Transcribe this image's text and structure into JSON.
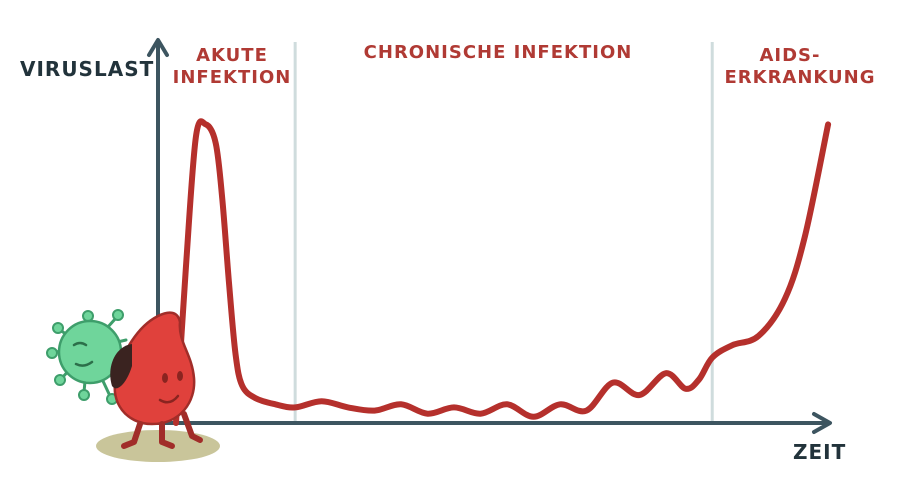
{
  "chart_data": {
    "type": "line",
    "ylabel": "VIRUSLAST",
    "xlabel": "ZEIT",
    "phases": [
      {
        "lines": [
          "AKUTE",
          "INFEKTION"
        ]
      },
      {
        "lines": [
          "CHRONISCHE INFEKTION"
        ]
      },
      {
        "lines": [
          "AIDS-",
          "ERKRANKUNG"
        ]
      }
    ],
    "xlim": [
      0,
      100
    ],
    "ylim": [
      0,
      100
    ],
    "phase_boundaries": [
      18,
      81
    ],
    "series": [
      {
        "x": [
          0,
          1.5,
          3,
          4.5,
          6,
          7,
          8,
          9,
          10,
          12,
          15,
          18,
          22,
          26,
          30,
          34,
          38,
          42,
          46,
          50,
          54,
          58,
          62,
          66,
          70,
          74,
          77,
          79,
          81,
          84,
          88,
          92,
          95,
          98.5
        ],
        "y": [
          0,
          50,
          92,
          96,
          90,
          72,
          45,
          22,
          12,
          8,
          6,
          5,
          7,
          5,
          4,
          6,
          3,
          5,
          3,
          6,
          2,
          6,
          4,
          13,
          9,
          16,
          11,
          14,
          21,
          25,
          28,
          40,
          60,
          96
        ]
      }
    ],
    "colors": {
      "line": "#b5302c",
      "axis": "#3d5560",
      "divider": "#cfdcdd",
      "text_dark": "#1f2a30",
      "text_red": "#b03a34"
    }
  },
  "decoration": {
    "illustration": "virus-and-blood-drop-mascot-icon"
  }
}
